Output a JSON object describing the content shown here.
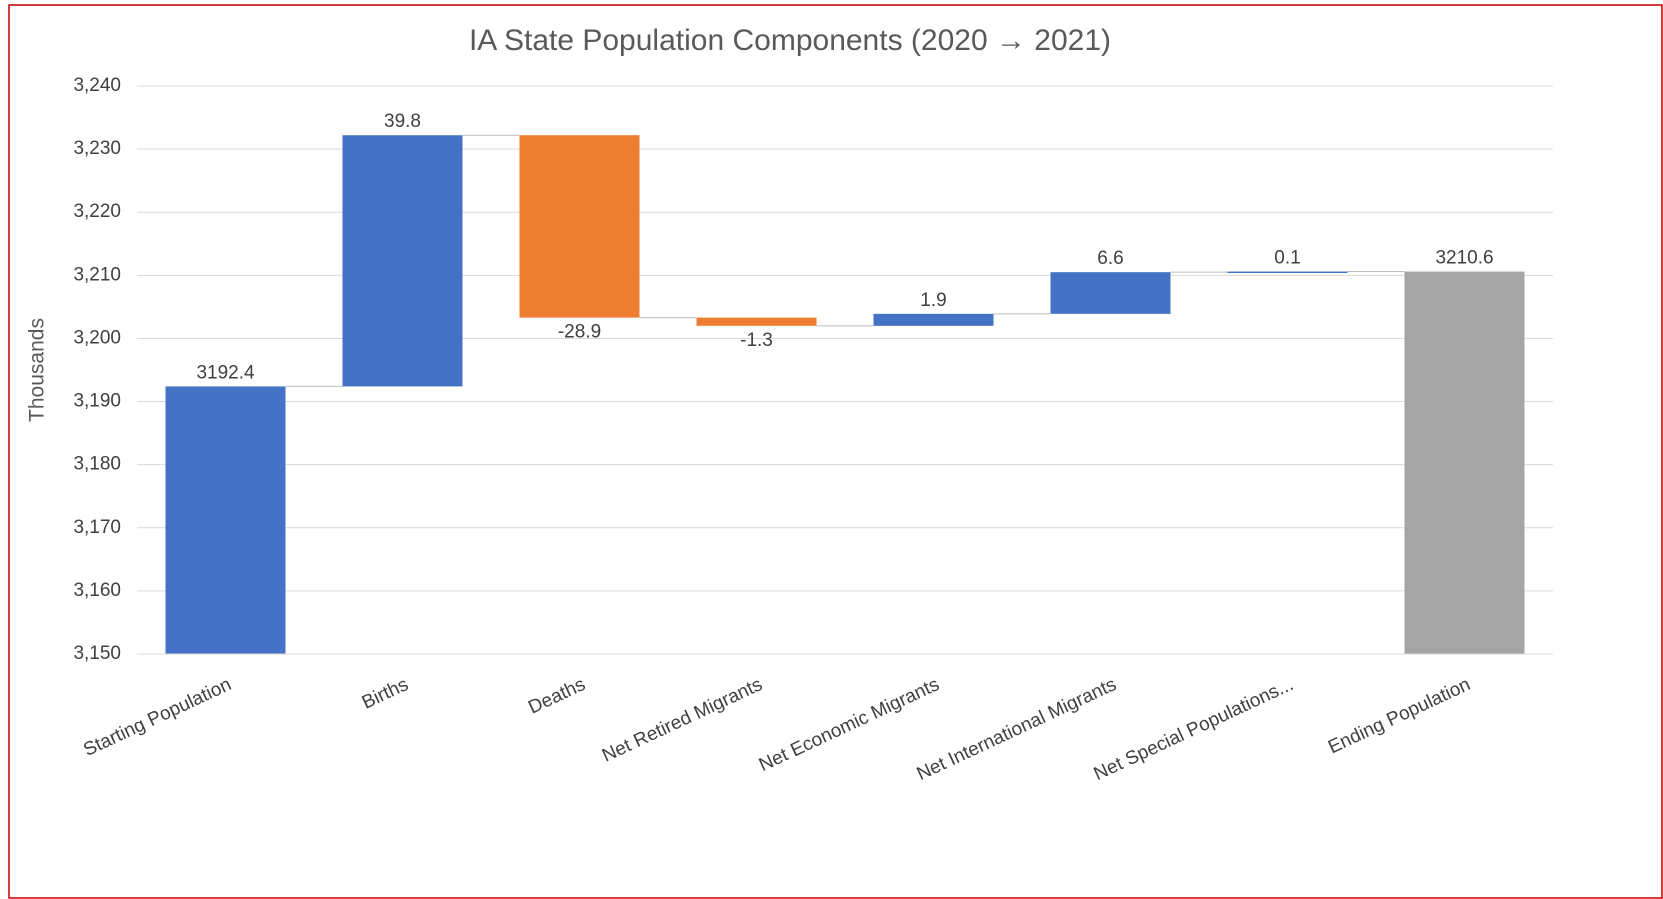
{
  "chart_data": {
    "type": "waterfall",
    "title": "IA State Population Components (2020 → 2021)",
    "y_label": "Thousands",
    "categories": [
      "Starting Population",
      "Births",
      "Deaths",
      "Net Retired Migrants",
      "Net Economic Migrants",
      "Net International Migrants",
      "Net Special Populations...",
      "Ending Population"
    ],
    "values": [
      3192.4,
      39.8,
      -28.9,
      -1.3,
      1.9,
      6.6,
      0.1,
      3210.6
    ],
    "is_total": [
      true,
      false,
      false,
      false,
      false,
      false,
      false,
      true
    ],
    "colors": {
      "increase": "#4472c4",
      "decrease": "#ed7d31",
      "total": "#a5a5a5",
      "start": "#4472c4"
    },
    "ylim": [
      3150,
      3240
    ],
    "yticks": [
      {
        "value": 3150,
        "label": "3,150"
      },
      {
        "value": 3160,
        "label": "3,160"
      },
      {
        "value": 3170,
        "label": "3,170"
      },
      {
        "value": 3180,
        "label": "3,180"
      },
      {
        "value": 3190,
        "label": "3,190"
      },
      {
        "value": 3200,
        "label": "3,200"
      },
      {
        "value": 3210,
        "label": "3,210"
      },
      {
        "value": 3220,
        "label": "3,220"
      },
      {
        "value": 3230,
        "label": "3,230"
      },
      {
        "value": 3240,
        "label": "3,240"
      }
    ],
    "grid": true
  }
}
